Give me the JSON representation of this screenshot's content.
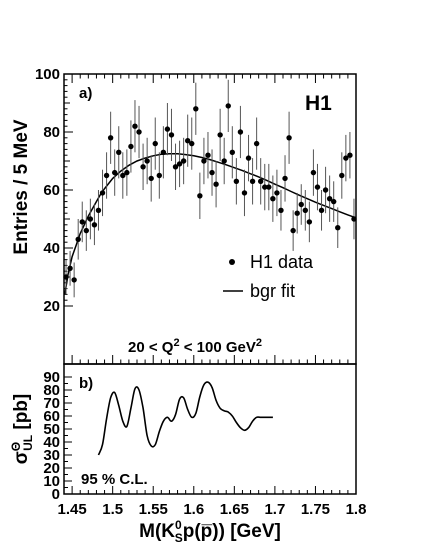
{
  "chart_data": [
    {
      "type": "scatter",
      "panel_label": "a)",
      "xlabel_parts": {
        "pre": "M(K",
        "sup": "0",
        "sub": "S",
        "post": "p(p̅)) [GeV]"
      },
      "ylabel": "Entries / 5 MeV",
      "xlim": [
        1.44,
        1.8
      ],
      "ylim": [
        0,
        100
      ],
      "x_ticks": [
        "1.45",
        "1.5",
        "1.55",
        "1.6",
        "1.65",
        "1.7",
        "1.75",
        "1.8"
      ],
      "y_ticks": [
        "20",
        "40",
        "60",
        "80",
        "100"
      ],
      "logo": "H1",
      "annotation": {
        "pre": "20 < Q",
        "sup": "2",
        "mid": " < 100 GeV",
        "sup2": "2"
      },
      "legend": {
        "position": "right",
        "data_label": "H1 data",
        "fit_label": "bgr fit"
      },
      "series": [
        {
          "name": "H1 data",
          "kind": "points",
          "x": [
            1.4425,
            1.4475,
            1.4525,
            1.4575,
            1.4625,
            1.4675,
            1.4725,
            1.4775,
            1.4825,
            1.4875,
            1.4925,
            1.4975,
            1.5025,
            1.5075,
            1.5125,
            1.5175,
            1.5225,
            1.5275,
            1.5325,
            1.5375,
            1.5425,
            1.5475,
            1.5525,
            1.5575,
            1.5625,
            1.5675,
            1.5725,
            1.5775,
            1.5825,
            1.5875,
            1.5925,
            1.5975,
            1.6025,
            1.6075,
            1.6125,
            1.6175,
            1.6225,
            1.6275,
            1.6325,
            1.6375,
            1.6425,
            1.6475,
            1.6525,
            1.6575,
            1.6625,
            1.6675,
            1.6725,
            1.6775,
            1.6825,
            1.6875,
            1.6925,
            1.6975,
            1.7025,
            1.7075,
            1.7125,
            1.7175,
            1.7225,
            1.7275,
            1.7325,
            1.7375,
            1.7425,
            1.7475,
            1.7525,
            1.7575,
            1.7625,
            1.7675,
            1.7725,
            1.7775,
            1.7825,
            1.7875,
            1.7925,
            1.7975
          ],
          "y": [
            30,
            33,
            29,
            43,
            49,
            46,
            50,
            48,
            53,
            59,
            65,
            78,
            66,
            73,
            65,
            66,
            75,
            82,
            80,
            68,
            70,
            64,
            76,
            65,
            73,
            81,
            79,
            68,
            69,
            70,
            77,
            76,
            88,
            58,
            70,
            72,
            66,
            62,
            79,
            70,
            89,
            73,
            63,
            80,
            59,
            71,
            63,
            76,
            63,
            61,
            61,
            57,
            59,
            53,
            64,
            78,
            46,
            52,
            55,
            53,
            49,
            66,
            61,
            53,
            60,
            57,
            56,
            47,
            65,
            71,
            72,
            50
          ],
          "yerr": [
            6,
            6,
            6,
            7,
            7,
            7,
            7,
            7,
            7,
            8,
            8,
            9,
            8,
            9,
            8,
            8,
            9,
            9,
            9,
            8,
            8,
            8,
            9,
            8,
            9,
            9,
            9,
            8,
            8,
            8,
            9,
            9,
            9,
            8,
            8,
            8,
            8,
            8,
            9,
            8,
            9,
            9,
            8,
            9,
            8,
            8,
            8,
            9,
            8,
            8,
            8,
            8,
            8,
            7,
            8,
            9,
            7,
            7,
            7,
            7,
            7,
            8,
            8,
            7,
            8,
            8,
            7,
            7,
            8,
            8,
            8,
            7
          ]
        },
        {
          "name": "bgr fit",
          "kind": "line",
          "x": [
            1.441,
            1.445,
            1.45,
            1.455,
            1.46,
            1.465,
            1.47,
            1.475,
            1.48,
            1.485,
            1.49,
            1.5,
            1.51,
            1.52,
            1.53,
            1.54,
            1.55,
            1.56,
            1.57,
            1.58,
            1.59,
            1.6,
            1.61,
            1.62,
            1.63,
            1.64,
            1.65,
            1.66,
            1.67,
            1.68,
            1.69,
            1.7,
            1.71,
            1.72,
            1.73,
            1.74,
            1.75,
            1.76,
            1.77,
            1.78,
            1.79,
            1.8
          ],
          "y": [
            24,
            31,
            37,
            41,
            45,
            48,
            51,
            53.5,
            56,
            58.5,
            60.5,
            64,
            66.5,
            68.5,
            70,
            71,
            71.8,
            72.3,
            72.5,
            72.5,
            72.2,
            71.8,
            71.2,
            70.5,
            69.6,
            68.7,
            67.7,
            66.7,
            65.6,
            64.5,
            63.3,
            62,
            60.8,
            59.5,
            58.2,
            57,
            55.8,
            54.7,
            53.6,
            52.5,
            51.4,
            50.4
          ]
        }
      ]
    },
    {
      "type": "line",
      "panel_label": "b)",
      "ylabel_parts": {
        "main": "σ",
        "sup": "Θ",
        "sub": "UL",
        "post": " [pb]"
      },
      "xlim": [
        1.44,
        1.8
      ],
      "ylim": [
        0,
        100
      ],
      "y_ticks": [
        "0",
        "10",
        "20",
        "30",
        "40",
        "50",
        "60",
        "70",
        "80",
        "90"
      ],
      "annotation": "95 % C.L.",
      "series": [
        {
          "name": "",
          "x": [
            1.4825,
            1.4875,
            1.4925,
            1.4975,
            1.5025,
            1.5075,
            1.5125,
            1.5175,
            1.5225,
            1.5275,
            1.5325,
            1.5375,
            1.5425,
            1.5475,
            1.5525,
            1.5575,
            1.5625,
            1.5675,
            1.5725,
            1.5775,
            1.5825,
            1.5875,
            1.5925,
            1.5975,
            1.6025,
            1.6075,
            1.6125,
            1.6175,
            1.6225,
            1.6275,
            1.6325,
            1.6375,
            1.6425,
            1.6475,
            1.6525,
            1.6575,
            1.6625,
            1.6675,
            1.6725,
            1.6775,
            1.6825,
            1.6875,
            1.6925,
            1.6975
          ],
          "y": [
            30,
            38,
            58,
            74,
            78,
            68,
            56,
            52,
            66,
            81,
            80,
            66,
            45,
            37,
            38,
            48,
            56,
            59,
            56,
            61,
            73,
            74,
            65,
            59,
            62,
            75,
            84,
            86,
            82,
            72,
            66,
            64,
            63,
            60,
            55,
            51,
            49,
            51,
            56,
            59,
            59,
            59,
            59,
            59
          ]
        }
      ]
    }
  ]
}
